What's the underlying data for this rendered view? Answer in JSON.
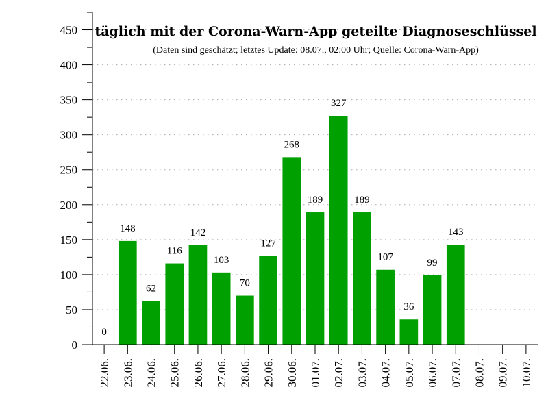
{
  "chart_data": {
    "type": "bar",
    "title": "täglich mit der Corona-Warn-App geteilte Diagnoseschlüssel",
    "subtitle": "(Daten sind geschätzt; letztes Update: 08.07., 02:00 Uhr; Quelle: Corona-Warn-App)",
    "xlabel": "",
    "ylabel": "",
    "categories": [
      "22.06.",
      "23.06.",
      "24.06.",
      "25.06.",
      "26.06.",
      "27.06.",
      "28.06.",
      "29.06.",
      "30.06.",
      "01.07.",
      "02.07.",
      "03.07.",
      "04.07.",
      "05.07.",
      "06.07.",
      "07.07.",
      "08.07.",
      "09.07.",
      "10.07."
    ],
    "values": [
      0,
      148,
      62,
      116,
      142,
      103,
      70,
      127,
      268,
      189,
      327,
      189,
      107,
      36,
      99,
      143,
      null,
      null,
      null
    ],
    "labels": [
      "0",
      "148",
      "62",
      "116",
      "142",
      "103",
      "70",
      "127",
      "268",
      "189",
      "327",
      "189",
      "107",
      "36",
      "99",
      "143",
      "",
      "",
      ""
    ],
    "ylim": [
      0,
      475
    ],
    "yticks": [
      0,
      50,
      100,
      150,
      200,
      250,
      300,
      350,
      400,
      450
    ],
    "ytick_labels": [
      "0",
      "50",
      "100",
      "150",
      "200",
      "250",
      "300",
      "350",
      "400",
      "450"
    ],
    "grid": true,
    "bar_color": "#00a000",
    "grid_color": "#aaaaaa"
  }
}
